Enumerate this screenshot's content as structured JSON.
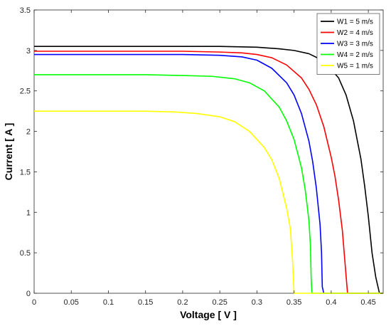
{
  "chart_data": {
    "type": "line",
    "xlabel": "Voltage [ V ]",
    "ylabel": "Current [ A ]",
    "xlim": [
      0,
      0.47
    ],
    "ylim": [
      0,
      3.5
    ],
    "xticks": [
      0,
      0.05,
      0.1,
      0.15,
      0.2,
      0.25,
      0.3,
      0.35,
      0.4,
      0.45
    ],
    "yticks": [
      0,
      0.5,
      1,
      1.5,
      2,
      2.5,
      3,
      3.5
    ],
    "xtick_labels": [
      "0",
      "0.05",
      "0.1",
      "0.15",
      "0.2",
      "0.25",
      "0.3",
      "0.35",
      "0.4",
      "0.45"
    ],
    "ytick_labels": [
      "0",
      "0.5",
      "1",
      "1.5",
      "2",
      "2.5",
      "3",
      "3.5"
    ],
    "grid": false,
    "legend_position": "top-right",
    "series": [
      {
        "name": "W1 = 5 m/s",
        "color": "#000000",
        "points": [
          [
            0,
            3.05
          ],
          [
            0.05,
            3.05
          ],
          [
            0.1,
            3.05
          ],
          [
            0.15,
            3.05
          ],
          [
            0.2,
            3.05
          ],
          [
            0.25,
            3.05
          ],
          [
            0.3,
            3.04
          ],
          [
            0.33,
            3.02
          ],
          [
            0.35,
            3.0
          ],
          [
            0.37,
            2.96
          ],
          [
            0.39,
            2.87
          ],
          [
            0.41,
            2.66
          ],
          [
            0.42,
            2.45
          ],
          [
            0.43,
            2.13
          ],
          [
            0.44,
            1.66
          ],
          [
            0.445,
            1.33
          ],
          [
            0.45,
            0.95
          ],
          [
            0.455,
            0.5
          ],
          [
            0.46,
            0.2
          ],
          [
            0.465,
            0.0
          ],
          [
            0.47,
            0.0
          ]
        ]
      },
      {
        "name": "W2 = 4 m/s",
        "color": "#ff0000",
        "points": [
          [
            0,
            2.99
          ],
          [
            0.05,
            2.99
          ],
          [
            0.1,
            2.99
          ],
          [
            0.15,
            2.99
          ],
          [
            0.2,
            2.99
          ],
          [
            0.25,
            2.98
          ],
          [
            0.28,
            2.97
          ],
          [
            0.3,
            2.95
          ],
          [
            0.32,
            2.91
          ],
          [
            0.34,
            2.82
          ],
          [
            0.36,
            2.66
          ],
          [
            0.37,
            2.52
          ],
          [
            0.38,
            2.33
          ],
          [
            0.39,
            2.06
          ],
          [
            0.4,
            1.68
          ],
          [
            0.405,
            1.45
          ],
          [
            0.41,
            1.15
          ],
          [
            0.415,
            0.78
          ],
          [
            0.42,
            0.22
          ],
          [
            0.422,
            0.0
          ],
          [
            0.47,
            0.0
          ]
        ]
      },
      {
        "name": "W3 = 3 m/s",
        "color": "#0000ff",
        "points": [
          [
            0,
            2.95
          ],
          [
            0.05,
            2.95
          ],
          [
            0.1,
            2.95
          ],
          [
            0.15,
            2.95
          ],
          [
            0.2,
            2.95
          ],
          [
            0.25,
            2.94
          ],
          [
            0.28,
            2.92
          ],
          [
            0.3,
            2.88
          ],
          [
            0.32,
            2.78
          ],
          [
            0.34,
            2.6
          ],
          [
            0.35,
            2.45
          ],
          [
            0.36,
            2.22
          ],
          [
            0.37,
            1.88
          ],
          [
            0.375,
            1.63
          ],
          [
            0.38,
            1.3
          ],
          [
            0.385,
            0.85
          ],
          [
            0.387,
            0.5
          ],
          [
            0.388,
            0.08
          ],
          [
            0.39,
            0.0
          ],
          [
            0.47,
            0.0
          ]
        ]
      },
      {
        "name": "W4 = 2 m/s",
        "color": "#00ff00",
        "points": [
          [
            0,
            2.7
          ],
          [
            0.05,
            2.7
          ],
          [
            0.1,
            2.7
          ],
          [
            0.15,
            2.7
          ],
          [
            0.2,
            2.69
          ],
          [
            0.24,
            2.68
          ],
          [
            0.27,
            2.65
          ],
          [
            0.29,
            2.6
          ],
          [
            0.31,
            2.5
          ],
          [
            0.33,
            2.3
          ],
          [
            0.34,
            2.13
          ],
          [
            0.35,
            1.9
          ],
          [
            0.36,
            1.55
          ],
          [
            0.365,
            1.28
          ],
          [
            0.37,
            0.9
          ],
          [
            0.372,
            0.6
          ],
          [
            0.373,
            0.2
          ],
          [
            0.374,
            0.0
          ],
          [
            0.47,
            0.0
          ]
        ]
      },
      {
        "name": "W5 = 1 m/s",
        "color": "#ffff00",
        "points": [
          [
            0,
            2.25
          ],
          [
            0.05,
            2.25
          ],
          [
            0.1,
            2.25
          ],
          [
            0.15,
            2.25
          ],
          [
            0.19,
            2.24
          ],
          [
            0.22,
            2.22
          ],
          [
            0.25,
            2.18
          ],
          [
            0.27,
            2.12
          ],
          [
            0.29,
            2.0
          ],
          [
            0.31,
            1.8
          ],
          [
            0.32,
            1.65
          ],
          [
            0.33,
            1.42
          ],
          [
            0.34,
            1.05
          ],
          [
            0.345,
            0.8
          ],
          [
            0.348,
            0.4
          ],
          [
            0.35,
            0.0
          ],
          [
            0.47,
            0.0
          ]
        ]
      }
    ]
  }
}
